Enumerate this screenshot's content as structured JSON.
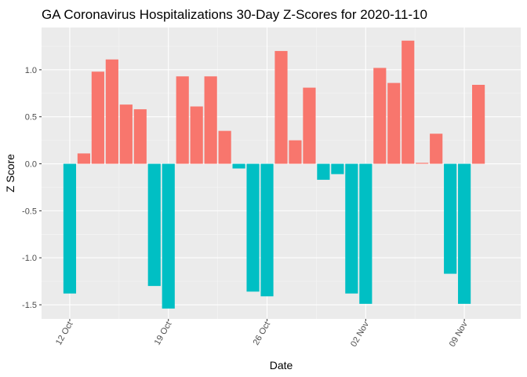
{
  "chart_data": {
    "type": "bar",
    "title": "GA Coronavirus Hospitalizations 30-Day Z-Scores for 2020-11-10",
    "xlabel": "Date",
    "ylabel": "Z Score",
    "ylim": [
      -1.65,
      1.45
    ],
    "y_ticks": [
      -1.5,
      -1.0,
      -0.5,
      0.0,
      0.5,
      1.0
    ],
    "y_tick_labels": [
      "-1.5",
      "-1.0",
      "-0.5",
      "0.0",
      "0.5",
      "1.0"
    ],
    "x_ticks": [
      {
        "date": "2020-10-12",
        "label": "12 Oct"
      },
      {
        "date": "2020-10-19",
        "label": "19 Oct"
      },
      {
        "date": "2020-10-26",
        "label": "26 Oct"
      },
      {
        "date": "2020-11-02",
        "label": "02 Nov"
      },
      {
        "date": "2020-11-09",
        "label": "09 Nov"
      }
    ],
    "xlim": [
      "2020-10-10",
      "2020-11-13"
    ],
    "categories": [
      "2020-10-12",
      "2020-10-13",
      "2020-10-14",
      "2020-10-15",
      "2020-10-16",
      "2020-10-17",
      "2020-10-18",
      "2020-10-19",
      "2020-10-20",
      "2020-10-21",
      "2020-10-22",
      "2020-10-23",
      "2020-10-24",
      "2020-10-25",
      "2020-10-26",
      "2020-10-27",
      "2020-10-28",
      "2020-10-29",
      "2020-10-30",
      "2020-10-31",
      "2020-11-01",
      "2020-11-02",
      "2020-11-03",
      "2020-11-04",
      "2020-11-05",
      "2020-11-06",
      "2020-11-07",
      "2020-11-08",
      "2020-11-09",
      "2020-11-10"
    ],
    "values": [
      -1.38,
      0.11,
      0.98,
      1.11,
      0.63,
      0.58,
      -1.3,
      -1.54,
      0.93,
      0.61,
      0.93,
      0.35,
      -0.05,
      -1.36,
      -1.41,
      1.2,
      0.25,
      0.81,
      -0.17,
      -0.11,
      -1.38,
      -1.49,
      1.02,
      0.86,
      1.31,
      0.01,
      0.32,
      -1.17,
      -1.49,
      0.84
    ],
    "colors": {
      "positive": "#f8766d",
      "negative": "#00bfc4",
      "panel": "#ebebeb",
      "grid_major": "#ffffff",
      "grid_minor": "#f5f5f5"
    },
    "grid": true,
    "legend": "none"
  }
}
